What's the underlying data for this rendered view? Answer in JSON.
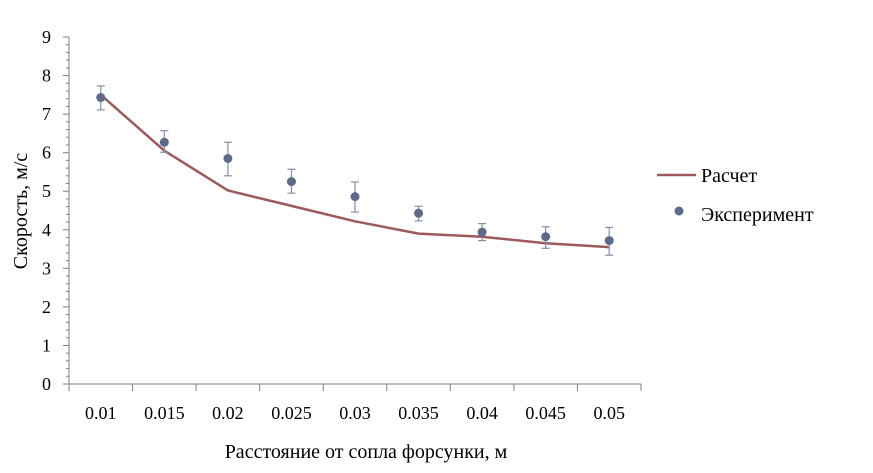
{
  "chart_data": {
    "type": "line",
    "title": "",
    "xlabel": "Расстояние от сопла форсунки, м",
    "ylabel": "Скорость, м/с",
    "categories": [
      "0.01",
      "0.015",
      "0.02",
      "0.025",
      "0.03",
      "0.035",
      "0.04",
      "0.045",
      "0.05"
    ],
    "ylim": [
      0,
      9
    ],
    "yticks": [
      "0",
      "1",
      "2",
      "3",
      "4",
      "5",
      "6",
      "7",
      "8",
      "9"
    ],
    "grid": false,
    "legend_position": "right",
    "series": [
      {
        "name": "Расчет",
        "kind": "line",
        "color": "#9e5a5a",
        "values": [
          7.5,
          6.05,
          5.02,
          4.62,
          4.22,
          3.9,
          3.82,
          3.65,
          3.55
        ]
      },
      {
        "name": "Эксперимент",
        "kind": "scatter",
        "color": "#5a6b8c",
        "values": [
          7.43,
          6.27,
          5.85,
          5.25,
          4.86,
          4.43,
          3.94,
          3.82,
          3.72
        ],
        "err_plus": [
          0.3,
          0.3,
          0.42,
          0.32,
          0.38,
          0.18,
          0.22,
          0.26,
          0.34
        ],
        "err_minus": [
          0.32,
          0.26,
          0.45,
          0.3,
          0.4,
          0.2,
          0.22,
          0.3,
          0.38
        ]
      }
    ]
  }
}
